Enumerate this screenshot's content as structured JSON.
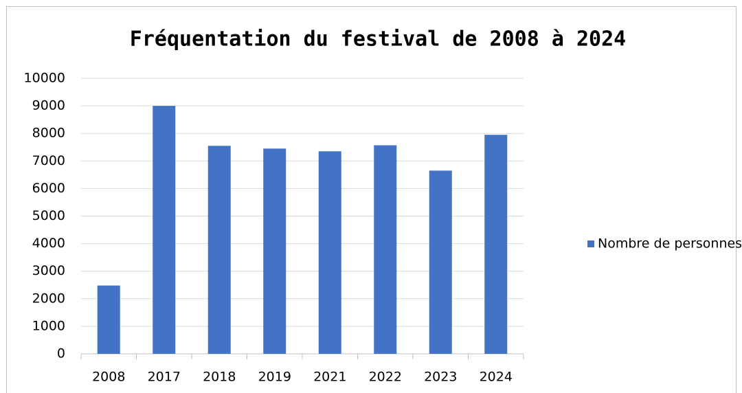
{
  "chart_data": {
    "type": "bar",
    "title": "Fréquentation du festival de 2008 à 2024",
    "categories": [
      "2008",
      "2017",
      "2018",
      "2019",
      "2021",
      "2022",
      "2023",
      "2024"
    ],
    "series": [
      {
        "name": "Nombre de personnes",
        "color": "#4472c4",
        "values": [
          2480,
          9000,
          7550,
          7450,
          7350,
          7570,
          6650,
          7950
        ]
      }
    ],
    "ylim": [
      0,
      10000
    ],
    "yticks": [
      0,
      1000,
      2000,
      3000,
      4000,
      5000,
      6000,
      7000,
      8000,
      9000,
      10000
    ],
    "grid": true,
    "legend": "right"
  }
}
